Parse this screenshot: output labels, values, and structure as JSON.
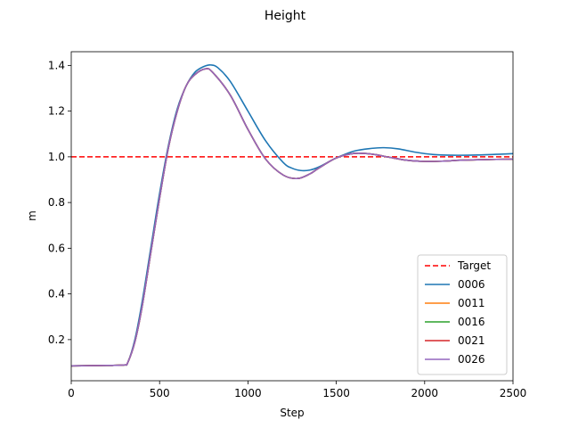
{
  "chart_data": {
    "type": "line",
    "title": "Height",
    "xlabel": "Step",
    "ylabel": "m",
    "xlim": [
      0,
      2500
    ],
    "ylim": [
      0.02,
      1.46
    ],
    "xticks": [
      0,
      500,
      1000,
      1500,
      2000,
      2500
    ],
    "yticks": [
      0.2,
      0.4,
      0.6,
      0.8,
      1.0,
      1.2,
      1.4
    ],
    "grid": false,
    "legend_position": "lower-right",
    "target": {
      "name": "Target",
      "value": 1.0,
      "color": "#ff0000",
      "style": "dashed"
    },
    "series": [
      {
        "name": "0006",
        "color": "#1f77b4",
        "x": [
          0,
          100,
          200,
          300,
          320,
          360,
          400,
          450,
          500,
          550,
          600,
          650,
          700,
          750,
          790,
          830,
          900,
          1000,
          1100,
          1200,
          1250,
          1300,
          1350,
          1400,
          1500,
          1600,
          1700,
          1770,
          1850,
          1950,
          2050,
          2150,
          2300,
          2500
        ],
        "y": [
          0.085,
          0.086,
          0.087,
          0.089,
          0.1,
          0.2,
          0.36,
          0.6,
          0.84,
          1.05,
          1.21,
          1.31,
          1.37,
          1.395,
          1.402,
          1.39,
          1.33,
          1.2,
          1.07,
          0.975,
          0.95,
          0.94,
          0.942,
          0.955,
          0.995,
          1.025,
          1.037,
          1.04,
          1.035,
          1.02,
          1.01,
          1.007,
          1.008,
          1.014
        ]
      },
      {
        "name": "0011",
        "color": "#ff7f0e",
        "x": [
          0,
          100,
          200,
          300,
          320,
          360,
          400,
          450,
          500,
          550,
          600,
          650,
          700,
          760,
          800,
          900,
          1000,
          1100,
          1200,
          1280,
          1350,
          1400,
          1500,
          1600,
          1700,
          1800,
          1900,
          2000,
          2100,
          2200,
          2350,
          2500
        ],
        "y": [
          0.085,
          0.086,
          0.087,
          0.089,
          0.1,
          0.19,
          0.34,
          0.58,
          0.82,
          1.04,
          1.2,
          1.31,
          1.36,
          1.385,
          1.37,
          1.27,
          1.12,
          0.99,
          0.92,
          0.905,
          0.925,
          0.95,
          0.995,
          1.015,
          1.012,
          0.998,
          0.985,
          0.98,
          0.981,
          0.985,
          0.988,
          0.99
        ]
      },
      {
        "name": "0016",
        "color": "#2ca02c",
        "x": [
          0,
          100,
          200,
          300,
          320,
          360,
          400,
          450,
          500,
          550,
          600,
          650,
          700,
          760,
          800,
          900,
          1000,
          1100,
          1200,
          1280,
          1350,
          1400,
          1500,
          1600,
          1700,
          1800,
          1900,
          2000,
          2100,
          2200,
          2350,
          2500
        ],
        "y": [
          0.085,
          0.086,
          0.087,
          0.089,
          0.1,
          0.19,
          0.34,
          0.58,
          0.82,
          1.04,
          1.2,
          1.31,
          1.36,
          1.385,
          1.37,
          1.27,
          1.12,
          0.99,
          0.92,
          0.905,
          0.925,
          0.95,
          0.995,
          1.015,
          1.012,
          0.998,
          0.985,
          0.98,
          0.981,
          0.985,
          0.988,
          0.99
        ]
      },
      {
        "name": "0021",
        "color": "#d62728",
        "x": [
          0,
          100,
          200,
          300,
          320,
          360,
          400,
          450,
          500,
          550,
          600,
          650,
          700,
          760,
          800,
          900,
          1000,
          1100,
          1200,
          1280,
          1350,
          1400,
          1500,
          1600,
          1700,
          1800,
          1900,
          2000,
          2100,
          2200,
          2350,
          2500
        ],
        "y": [
          0.085,
          0.086,
          0.087,
          0.089,
          0.1,
          0.19,
          0.34,
          0.58,
          0.82,
          1.04,
          1.2,
          1.31,
          1.36,
          1.385,
          1.37,
          1.27,
          1.12,
          0.99,
          0.92,
          0.905,
          0.925,
          0.95,
          0.995,
          1.015,
          1.012,
          0.998,
          0.985,
          0.98,
          0.981,
          0.985,
          0.988,
          0.99
        ]
      },
      {
        "name": "0026",
        "color": "#9467bd",
        "x": [
          0,
          100,
          200,
          300,
          320,
          360,
          400,
          450,
          500,
          550,
          600,
          650,
          700,
          760,
          800,
          900,
          1000,
          1100,
          1200,
          1280,
          1350,
          1400,
          1500,
          1600,
          1700,
          1800,
          1900,
          2000,
          2100,
          2200,
          2350,
          2500
        ],
        "y": [
          0.085,
          0.086,
          0.087,
          0.089,
          0.1,
          0.19,
          0.34,
          0.58,
          0.82,
          1.04,
          1.2,
          1.31,
          1.36,
          1.385,
          1.37,
          1.27,
          1.12,
          0.99,
          0.92,
          0.905,
          0.925,
          0.95,
          0.995,
          1.015,
          1.012,
          0.998,
          0.985,
          0.98,
          0.981,
          0.985,
          0.988,
          0.99
        ]
      }
    ]
  }
}
